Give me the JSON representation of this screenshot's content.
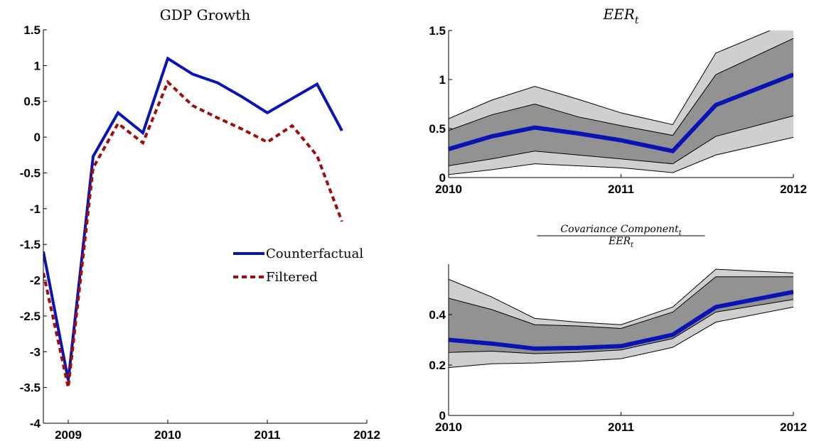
{
  "chart_data": [
    {
      "type": "line",
      "title": "GDP Growth",
      "x": [
        2008.75,
        2009,
        2009.25,
        2009.5,
        2009.75,
        2010,
        2010.25,
        2010.5,
        2010.75,
        2011,
        2011.25,
        2011.5,
        2011.75
      ],
      "series": [
        {
          "name": "Counterfactual",
          "color": "#0a14b4",
          "dash": false,
          "values": [
            -1.6,
            -3.4,
            -0.27,
            0.34,
            0.06,
            1.1,
            0.88,
            0.76,
            0.56,
            0.34,
            0.54,
            0.74,
            0.09
          ]
        },
        {
          "name": "Filtered",
          "color": "#a00d0d",
          "dash": true,
          "values": [
            -1.9,
            -3.5,
            -0.43,
            0.19,
            -0.08,
            0.77,
            0.44,
            0.27,
            0.11,
            -0.07,
            0.16,
            -0.26,
            -1.18
          ]
        }
      ],
      "xlim": [
        2008.75,
        2012
      ],
      "xticks": [
        2009,
        2010,
        2011,
        2012
      ],
      "ylim": [
        -4,
        1.5
      ],
      "yticks": [
        -4,
        -3.5,
        -3,
        -2.5,
        -2,
        -1.5,
        -1,
        -0.5,
        0,
        0.5,
        1,
        1.5
      ],
      "legend": "right"
    },
    {
      "type": "band",
      "title": {
        "main": "EER",
        "sub": "t"
      },
      "x": [
        2010,
        2010.25,
        2010.5,
        2010.75,
        2011,
        2011.3,
        2011.55,
        2012
      ],
      "bands": [
        {
          "color": "#cfcfcf",
          "upper": [
            0.6,
            0.79,
            0.93,
            0.8,
            0.66,
            0.54,
            1.27,
            1.6
          ],
          "lower": [
            0.03,
            0.08,
            0.14,
            0.12,
            0.1,
            0.05,
            0.23,
            0.41
          ]
        },
        {
          "color": "#929292",
          "upper": [
            0.48,
            0.64,
            0.75,
            0.62,
            0.53,
            0.43,
            1.05,
            1.42
          ],
          "lower": [
            0.12,
            0.19,
            0.27,
            0.23,
            0.19,
            0.14,
            0.42,
            0.63
          ]
        }
      ],
      "series": [
        {
          "color": "#0a14b4",
          "values": [
            0.29,
            0.42,
            0.51,
            0.45,
            0.38,
            0.27,
            0.74,
            1.05
          ]
        }
      ],
      "xlim": [
        2010,
        2012
      ],
      "xticks": [
        2010,
        2011,
        2012
      ],
      "ylim": [
        0,
        1.5
      ],
      "yticks": [
        0,
        0.5,
        1,
        1.5
      ]
    },
    {
      "type": "band",
      "title_numerator": {
        "main": "Covariance  Component",
        "sub": "t"
      },
      "title_denominator": {
        "main": "EER",
        "sub": "t"
      },
      "x": [
        2010,
        2010.25,
        2010.5,
        2010.75,
        2011,
        2011.3,
        2011.55,
        2012
      ],
      "bands": [
        {
          "color": "#cfcfcf",
          "upper": [
            0.54,
            0.47,
            0.385,
            0.37,
            0.36,
            0.43,
            0.58,
            0.565
          ],
          "lower": [
            0.19,
            0.205,
            0.208,
            0.215,
            0.225,
            0.27,
            0.37,
            0.43
          ]
        },
        {
          "color": "#929292",
          "upper": [
            0.465,
            0.42,
            0.36,
            0.355,
            0.345,
            0.41,
            0.55,
            0.55
          ],
          "lower": [
            0.25,
            0.255,
            0.245,
            0.25,
            0.26,
            0.305,
            0.41,
            0.46
          ]
        }
      ],
      "series": [
        {
          "color": "#0a14b4",
          "values": [
            0.3,
            0.285,
            0.265,
            0.268,
            0.275,
            0.32,
            0.43,
            0.49
          ]
        }
      ],
      "xlim": [
        2010,
        2012
      ],
      "xticks": [
        2010,
        2011,
        2012
      ],
      "ylim": [
        0,
        0.6
      ],
      "yticks": [
        0,
        0.2,
        0.4
      ]
    }
  ]
}
